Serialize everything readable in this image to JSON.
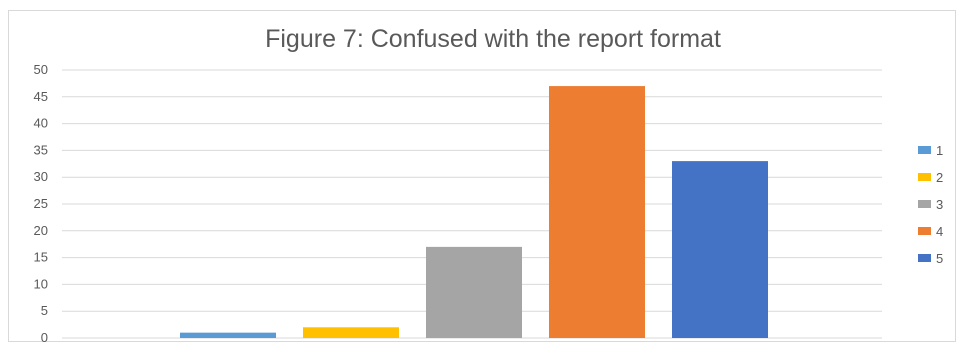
{
  "chart_data": {
    "type": "bar",
    "title": "Figure 7: Confused with the report format",
    "xlabel": "",
    "ylabel": "",
    "categories": [
      "1",
      "2",
      "3",
      "4",
      "5"
    ],
    "values": [
      1,
      2,
      17,
      47,
      33
    ],
    "colors": [
      "#5b9bd5",
      "#ffc000",
      "#a5a5a5",
      "#ed7d31",
      "#4472c4"
    ],
    "ylim": [
      0,
      50
    ],
    "yticks": [
      0,
      5,
      10,
      15,
      20,
      25,
      30,
      35,
      40,
      45,
      50
    ],
    "grid": true,
    "legend": {
      "position": "right",
      "entries": [
        "1",
        "2",
        "3",
        "4",
        "5"
      ]
    }
  }
}
